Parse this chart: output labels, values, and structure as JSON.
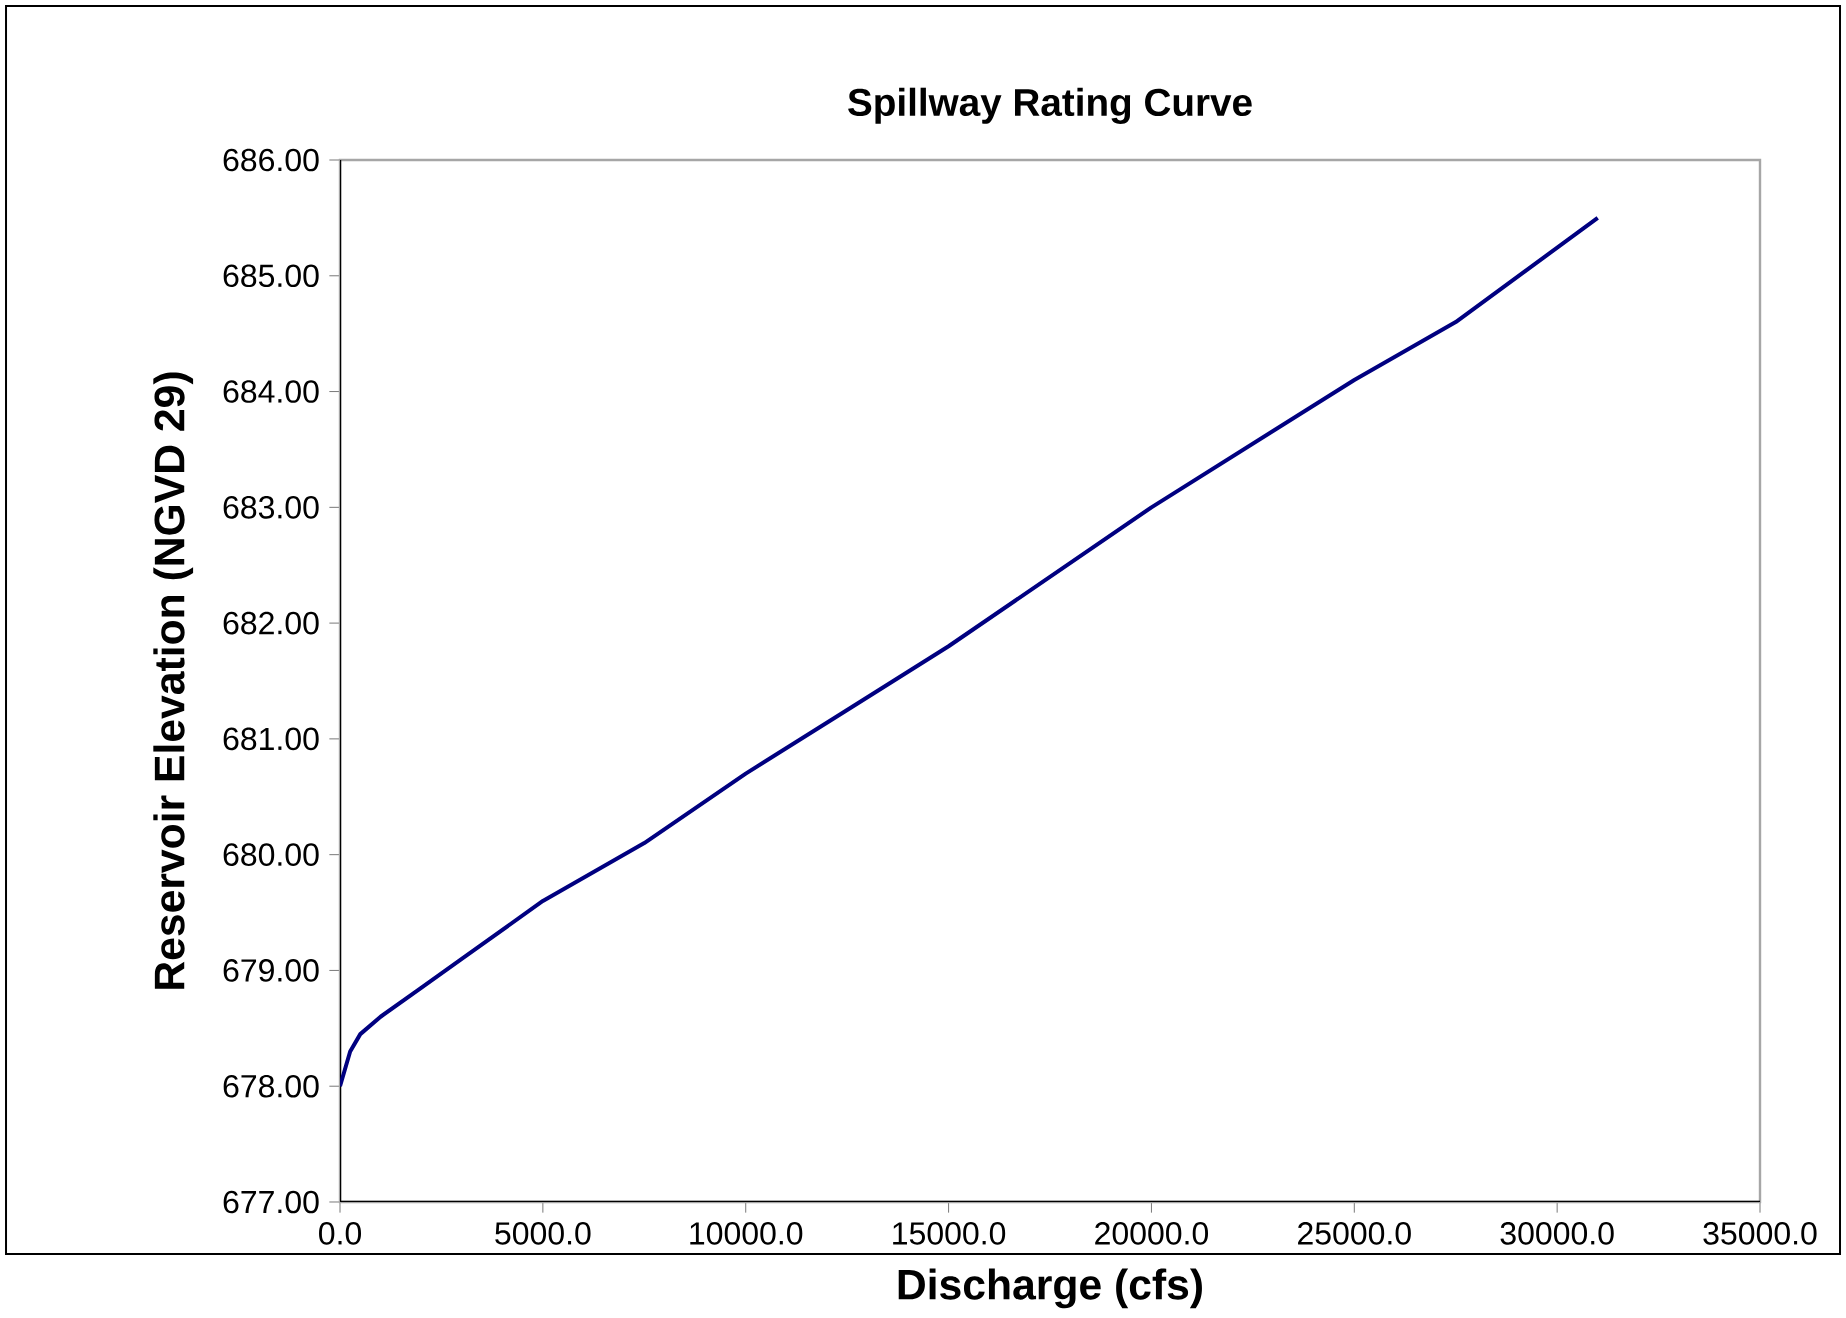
{
  "chart_data": {
    "type": "line",
    "title": "Spillway Rating Curve",
    "xlabel": "Discharge (cfs)",
    "ylabel": "Reservoir Elevation (NGVD 29)",
    "x": [
      0,
      250,
      500,
      1000,
      2000,
      3000,
      5000,
      7500,
      10000,
      12500,
      15000,
      17500,
      20000,
      22500,
      25000,
      27500,
      31000
    ],
    "series": [
      {
        "color": "#000080",
        "values": [
          678.0,
          678.3,
          678.45,
          678.6,
          678.85,
          679.1,
          679.6,
          680.1,
          680.7,
          681.25,
          681.8,
          682.4,
          683.0,
          683.55,
          684.1,
          684.6,
          685.5
        ]
      }
    ],
    "xlim": [
      0,
      35000
    ],
    "xticks": [
      {
        "value": 0,
        "label": "0.0"
      },
      {
        "value": 5000,
        "label": "5000.0"
      },
      {
        "value": 10000,
        "label": "10000.0"
      },
      {
        "value": 15000,
        "label": "15000.0"
      },
      {
        "value": 20000,
        "label": "20000.0"
      },
      {
        "value": 25000,
        "label": "25000.0"
      },
      {
        "value": 30000,
        "label": "30000.0"
      },
      {
        "value": 35000,
        "label": "35000.0"
      }
    ],
    "ylim": [
      677,
      686
    ],
    "yticks": [
      {
        "value": 677,
        "label": "677.00"
      },
      {
        "value": 678,
        "label": "678.00"
      },
      {
        "value": 679,
        "label": "679.00"
      },
      {
        "value": 680,
        "label": "680.00"
      },
      {
        "value": 681,
        "label": "681.00"
      },
      {
        "value": 682,
        "label": "682.00"
      },
      {
        "value": 683,
        "label": "683.00"
      },
      {
        "value": 684,
        "label": "684.00"
      },
      {
        "value": 685,
        "label": "685.00"
      },
      {
        "value": 686,
        "label": "686.00"
      }
    ],
    "grid": false,
    "legend": false,
    "marker": "none",
    "line_style": "solid"
  }
}
